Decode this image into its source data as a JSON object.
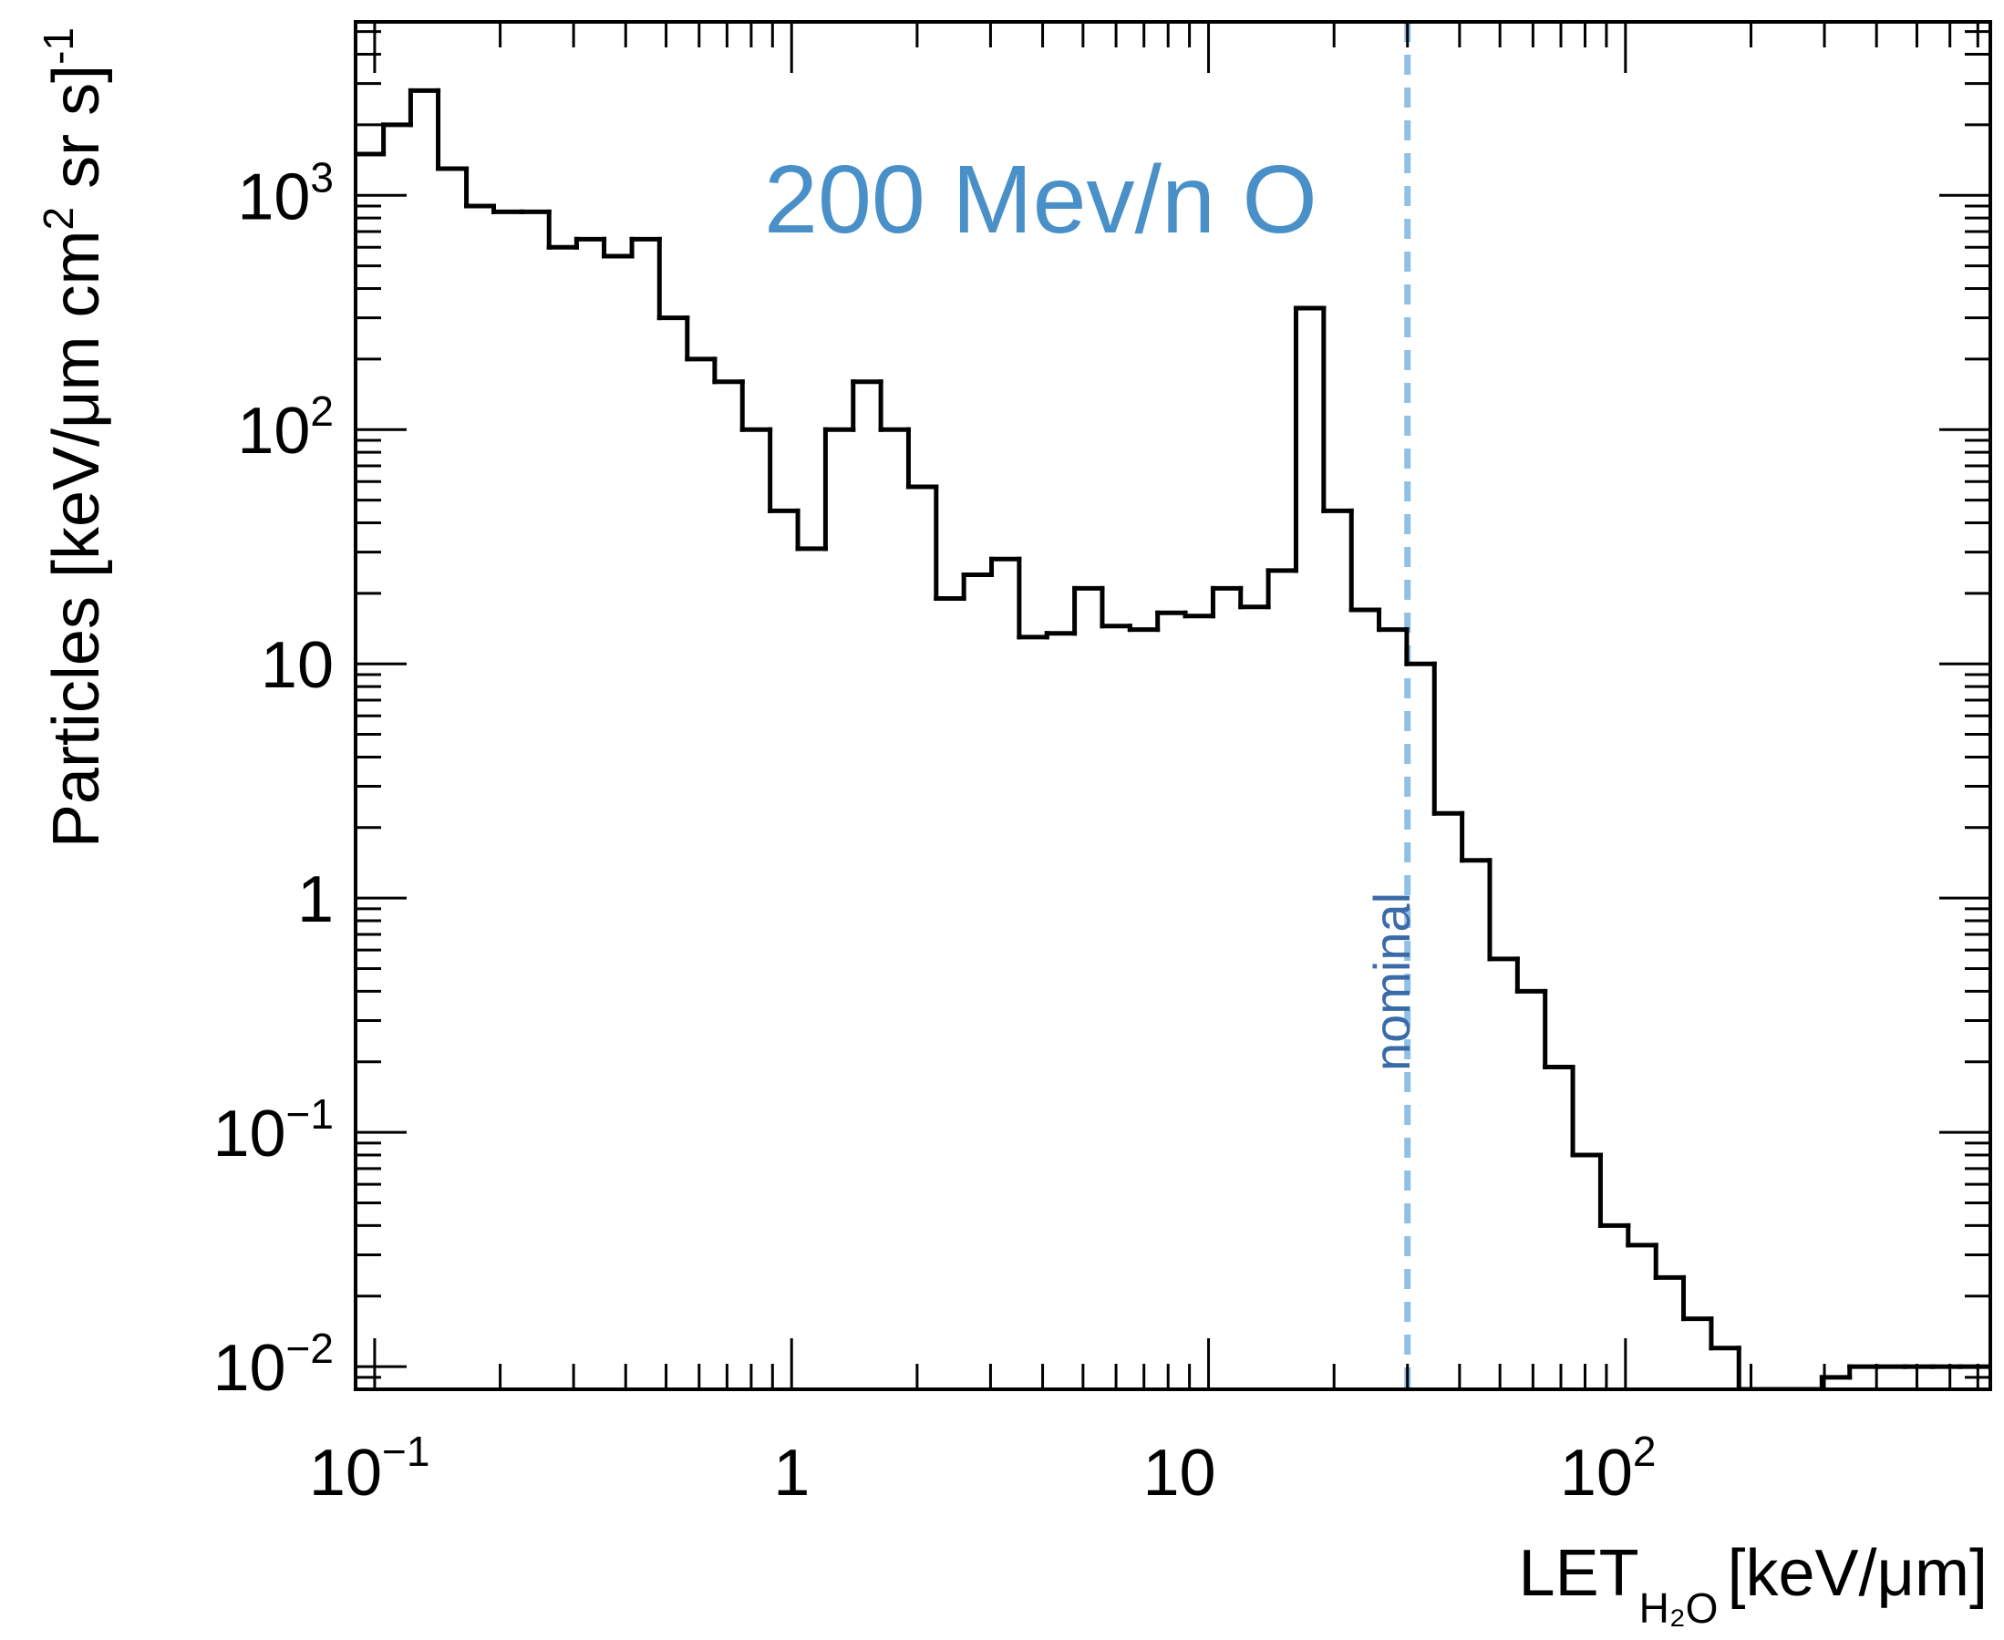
{
  "chart_data": {
    "type": "line",
    "style": "step-histogram",
    "x_scale": "log",
    "y_scale": "log",
    "xlim": [
      0.09,
      750
    ],
    "ylim": [
      0.008,
      5500
    ],
    "grid": false,
    "xlabel": {
      "main": "LET",
      "sub": "H₂O",
      "unit": "[keV/μm]"
    },
    "ylabel": {
      "main": "Particles [keV/μm cm",
      "exp1": "2",
      "mid": " sr s]",
      "exp2": "-1"
    },
    "x_ticks": [
      {
        "value": 0.1,
        "base": "10",
        "exp": "−1"
      },
      {
        "value": 1,
        "base": "1",
        "exp": ""
      },
      {
        "value": 10,
        "base": "10",
        "exp": ""
      },
      {
        "value": 100,
        "base": "10",
        "exp": "2"
      }
    ],
    "y_ticks": [
      {
        "value": 0.01,
        "base": "10",
        "exp": "−2"
      },
      {
        "value": 0.1,
        "base": "10",
        "exp": "−1"
      },
      {
        "value": 1,
        "base": "1",
        "exp": ""
      },
      {
        "value": 10,
        "base": "10",
        "exp": ""
      },
      {
        "value": 100,
        "base": "10",
        "exp": "2"
      },
      {
        "value": 1000,
        "base": "10",
        "exp": "3"
      }
    ],
    "annotations": {
      "title": {
        "text": "200 Mev/n O",
        "color": "#4a90c8"
      },
      "nominal": {
        "text": "nominal",
        "x": 30,
        "label_color": "#3a6aa8",
        "line_color": "#8fc0e8"
      }
    },
    "series": [
      {
        "color": "#000000",
        "edges": [
          0.09,
          0.105,
          0.122,
          0.142,
          0.166,
          0.193,
          0.225,
          0.262,
          0.305,
          0.355,
          0.414,
          0.482,
          0.562,
          0.654,
          0.762,
          0.888,
          1.035,
          1.206,
          1.405,
          1.637,
          1.907,
          2.222,
          2.589,
          3.017,
          3.515,
          4.096,
          4.772,
          5.56,
          6.479,
          7.549,
          8.796,
          10.25,
          11.94,
          13.91,
          16.21,
          18.89,
          22.01,
          25.64,
          29.88,
          34.81,
          40.56,
          47.26,
          55.07,
          64.16,
          74.76,
          87.11,
          101.5,
          118.3,
          137.8,
          160.6,
          187.1,
          218.0,
          254.0,
          296.0,
          344.9,
          401.8,
          468.2,
          545.5,
          635.6,
          740.6
        ],
        "values": [
          1500,
          2000,
          2800,
          1300,
          900,
          850,
          850,
          600,
          650,
          550,
          650,
          300,
          200,
          160,
          100,
          45,
          31,
          100,
          160,
          100,
          57,
          19,
          24,
          28,
          13,
          13.5,
          21,
          14.5,
          14,
          16.5,
          16,
          21,
          17.5,
          25,
          330,
          45,
          17,
          14,
          10,
          2.3,
          1.45,
          0.55,
          0.4,
          0.19,
          0.08,
          0.04,
          0.033,
          0.024,
          0.016,
          0.012,
          0.008,
          0.008,
          0.008,
          0.009,
          0.01,
          0.01,
          0.01,
          0.01,
          0.01
        ]
      }
    ]
  }
}
